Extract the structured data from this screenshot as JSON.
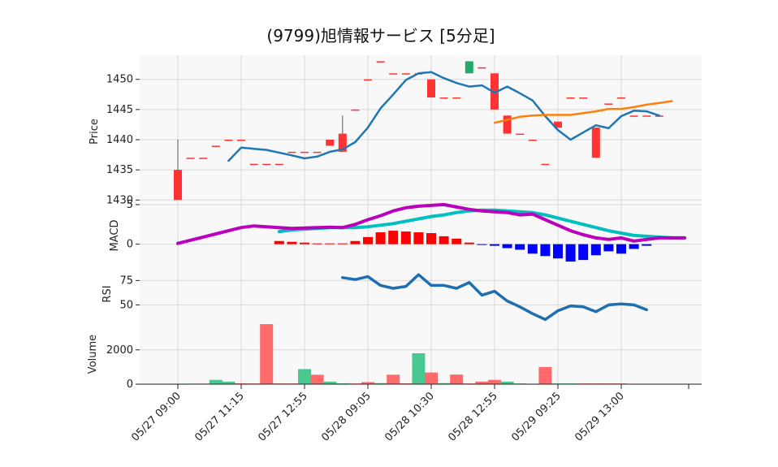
{
  "chart_data": {
    "type": "candlestick",
    "title": "(9799)旭情報サービス [5分足]",
    "x_tick_labels": [
      "05/27 09:00",
      "05/27 11:15",
      "05/27 12:55",
      "05/28 09:05",
      "05/28 10:30",
      "05/28 12:55",
      "05/29 09:25",
      "05/29 13:00"
    ],
    "x_tick_index": [
      0,
      5,
      10,
      15,
      20,
      25,
      30,
      35
    ],
    "n_bars": 39,
    "price": {
      "ylabel": "Price",
      "ylim": [
        1429.5,
        1454
      ],
      "yticks": [
        1430,
        1435,
        1440,
        1445,
        1450
      ],
      "up_color": "#26a86a",
      "down_color": "#ff3333",
      "ohlc": [
        [
          0,
          1435,
          1440,
          1430,
          1430
        ],
        [
          1,
          1437,
          1437,
          1437,
          1437
        ],
        [
          2,
          1437,
          1437,
          1437,
          1437
        ],
        [
          3,
          1439,
          1439,
          1439,
          1439
        ],
        [
          4,
          1440,
          1440,
          1440,
          1440
        ],
        [
          5,
          1440,
          1440,
          1440,
          1440
        ],
        [
          6,
          1436,
          1436,
          1436,
          1436
        ],
        [
          7,
          1436,
          1436,
          1436,
          1436
        ],
        [
          8,
          1436,
          1436,
          1436,
          1436
        ],
        [
          9,
          1438,
          1438,
          1438,
          1438
        ],
        [
          10,
          1438,
          1438,
          1438,
          1438
        ],
        [
          11,
          1438,
          1438,
          1438,
          1438
        ],
        [
          12,
          1440,
          1440,
          1439,
          1439
        ],
        [
          13,
          1441,
          1444,
          1438,
          1438
        ],
        [
          14,
          1445,
          1445,
          1445,
          1445
        ],
        [
          15,
          1450,
          1450,
          1450,
          1450
        ],
        [
          16,
          1453,
          1453,
          1453,
          1453
        ],
        [
          17,
          1451,
          1451,
          1451,
          1451
        ],
        [
          18,
          1451,
          1451,
          1451,
          1451
        ],
        [
          19,
          1451,
          1451,
          1451,
          1451
        ],
        [
          20,
          1450,
          1450,
          1447,
          1447
        ],
        [
          21,
          1447,
          1447,
          1447,
          1447
        ],
        [
          22,
          1447,
          1447,
          1447,
          1447
        ],
        [
          23,
          1451,
          1453,
          1451,
          1453
        ],
        [
          24,
          1452,
          1452,
          1452,
          1452
        ],
        [
          25,
          1451,
          1451,
          1445,
          1445
        ],
        [
          26,
          1444,
          1444,
          1441,
          1441
        ],
        [
          27,
          1441,
          1441,
          1441,
          1441
        ],
        [
          28,
          1440,
          1440,
          1440,
          1440
        ],
        [
          29,
          1436,
          1436,
          1436,
          1436
        ],
        [
          30,
          1443,
          1443,
          1442,
          1442
        ],
        [
          31,
          1447,
          1447,
          1447,
          1447
        ],
        [
          32,
          1447,
          1447,
          1447,
          1447
        ],
        [
          33,
          1442,
          1442,
          1437,
          1437
        ],
        [
          34,
          1446,
          1446,
          1446,
          1446
        ],
        [
          35,
          1447,
          1447,
          1447,
          1447
        ],
        [
          36,
          1444,
          1444,
          1444,
          1444
        ],
        [
          37,
          1444,
          1444,
          1444,
          1444
        ],
        [
          38,
          1444,
          1444,
          1444,
          1444
        ]
      ],
      "ma_short": [
        [
          4,
          1436.5
        ],
        [
          5,
          1438.7
        ],
        [
          7,
          1438.3
        ],
        [
          9,
          1437.4
        ],
        [
          10,
          1436.9
        ],
        [
          11,
          1437.2
        ],
        [
          12,
          1438.0
        ],
        [
          13,
          1438.4
        ],
        [
          14,
          1439.6
        ],
        [
          15,
          1442.0
        ],
        [
          16,
          1445.2
        ],
        [
          17,
          1447.5
        ],
        [
          18,
          1449.9
        ],
        [
          19,
          1451.0
        ],
        [
          20,
          1451.2
        ],
        [
          21,
          1450.2
        ],
        [
          22,
          1449.4
        ],
        [
          23,
          1448.8
        ],
        [
          24,
          1449.0
        ],
        [
          25,
          1447.8
        ],
        [
          26,
          1448.8
        ],
        [
          27,
          1447.7
        ],
        [
          28,
          1446.5
        ],
        [
          29,
          1443.9
        ],
        [
          30,
          1441.6
        ],
        [
          31,
          1440.0
        ],
        [
          32,
          1441.2
        ],
        [
          33,
          1442.4
        ],
        [
          34,
          1441.9
        ],
        [
          35,
          1443.9
        ],
        [
          36,
          1444.8
        ],
        [
          37,
          1444.7
        ],
        [
          38,
          1444.0
        ]
      ],
      "ma_long": [
        [
          25,
          1442.8
        ],
        [
          26,
          1443.3
        ],
        [
          27,
          1443.8
        ],
        [
          28,
          1444.0
        ],
        [
          29,
          1444.1
        ],
        [
          30,
          1444.1
        ],
        [
          31,
          1444.1
        ],
        [
          32,
          1444.4
        ],
        [
          33,
          1444.7
        ],
        [
          34,
          1445.1
        ],
        [
          35,
          1445.1
        ],
        [
          36,
          1445.4
        ],
        [
          37,
          1445.8
        ],
        [
          38,
          1446.1
        ],
        [
          39,
          1446.4
        ]
      ],
      "ma_short_color": "#1f77b4",
      "ma_long_color": "#ff7f0e"
    },
    "macd": {
      "ylabel": "MACD",
      "ylim": [
        -2.5,
        5.2
      ],
      "yticks": [
        0,
        5
      ],
      "macd_line": [
        [
          0,
          0.1
        ],
        [
          1,
          0.5
        ],
        [
          2,
          0.9
        ],
        [
          3,
          1.3
        ],
        [
          4,
          1.7
        ],
        [
          5,
          2.1
        ],
        [
          6,
          2.3
        ],
        [
          7,
          2.2
        ],
        [
          8,
          2.1
        ],
        [
          9,
          2.0
        ],
        [
          10,
          2.05
        ],
        [
          11,
          2.1
        ],
        [
          12,
          2.15
        ],
        [
          13,
          2.1
        ],
        [
          14,
          2.5
        ],
        [
          15,
          3.1
        ],
        [
          16,
          3.6
        ],
        [
          17,
          4.2
        ],
        [
          18,
          4.6
        ],
        [
          19,
          4.8
        ],
        [
          20,
          4.9
        ],
        [
          21,
          5.0
        ],
        [
          22,
          4.7
        ],
        [
          23,
          4.4
        ],
        [
          24,
          4.2
        ],
        [
          25,
          4.1
        ],
        [
          26,
          4.0
        ],
        [
          27,
          3.7
        ],
        [
          28,
          3.8
        ],
        [
          29,
          3.1
        ],
        [
          30,
          2.4
        ],
        [
          31,
          1.7
        ],
        [
          32,
          1.2
        ],
        [
          33,
          0.8
        ],
        [
          34,
          0.6
        ],
        [
          35,
          0.8
        ],
        [
          36,
          0.4
        ],
        [
          37,
          0.6
        ],
        [
          38,
          0.8
        ],
        [
          39,
          0.8
        ],
        [
          40,
          0.8
        ]
      ],
      "signal_line": [
        [
          8,
          1.6
        ],
        [
          9,
          1.8
        ],
        [
          10,
          1.9
        ],
        [
          11,
          2.0
        ],
        [
          12,
          2.1
        ],
        [
          13,
          2.1
        ],
        [
          14,
          2.1
        ],
        [
          15,
          2.2
        ],
        [
          16,
          2.4
        ],
        [
          17,
          2.6
        ],
        [
          18,
          2.9
        ],
        [
          19,
          3.2
        ],
        [
          20,
          3.5
        ],
        [
          21,
          3.7
        ],
        [
          22,
          4.0
        ],
        [
          23,
          4.2
        ],
        [
          24,
          4.3
        ],
        [
          25,
          4.3
        ],
        [
          26,
          4.2
        ],
        [
          27,
          4.1
        ],
        [
          28,
          4.0
        ],
        [
          29,
          3.7
        ],
        [
          30,
          3.3
        ],
        [
          31,
          2.9
        ],
        [
          32,
          2.5
        ],
        [
          33,
          2.1
        ],
        [
          34,
          1.7
        ],
        [
          35,
          1.4
        ],
        [
          36,
          1.1
        ],
        [
          37,
          1.0
        ],
        [
          38,
          0.9
        ],
        [
          39,
          0.8
        ],
        [
          40,
          0.8
        ]
      ],
      "histogram": [
        [
          8,
          0.4
        ],
        [
          9,
          0.3
        ],
        [
          10,
          0.2
        ],
        [
          11,
          0.1
        ],
        [
          12,
          0.1
        ],
        [
          13,
          0.1
        ],
        [
          14,
          0.4
        ],
        [
          15,
          0.9
        ],
        [
          16,
          1.5
        ],
        [
          17,
          1.7
        ],
        [
          18,
          1.6
        ],
        [
          19,
          1.5
        ],
        [
          20,
          1.4
        ],
        [
          21,
          1.0
        ],
        [
          22,
          0.7
        ],
        [
          23,
          0.2
        ],
        [
          24,
          -0.1
        ],
        [
          25,
          -0.2
        ],
        [
          26,
          -0.5
        ],
        [
          27,
          -0.7
        ],
        [
          28,
          -1.2
        ],
        [
          29,
          -1.5
        ],
        [
          30,
          -1.8
        ],
        [
          31,
          -2.2
        ],
        [
          32,
          -2.0
        ],
        [
          33,
          -1.4
        ],
        [
          34,
          -0.9
        ],
        [
          35,
          -1.2
        ],
        [
          36,
          -0.6
        ],
        [
          37,
          -0.2
        ]
      ],
      "macd_color": "#bb00bb",
      "signal_color": "#00bfbf",
      "hist_pos_color": "#ff0000",
      "hist_neg_color": "#0000ff"
    },
    "rsi": {
      "ylabel": "RSI",
      "ylim": [
        32,
        92
      ],
      "yticks": [
        50,
        75
      ],
      "values": [
        [
          13,
          78
        ],
        [
          14,
          76
        ],
        [
          15,
          79
        ],
        [
          16,
          70
        ],
        [
          17,
          67
        ],
        [
          18,
          69
        ],
        [
          19,
          81
        ],
        [
          20,
          70
        ],
        [
          21,
          70
        ],
        [
          22,
          67
        ],
        [
          23,
          73
        ],
        [
          24,
          60
        ],
        [
          25,
          64
        ],
        [
          26,
          54
        ],
        [
          27,
          48
        ],
        [
          28,
          41
        ],
        [
          29,
          35
        ],
        [
          30,
          44
        ],
        [
          31,
          49
        ],
        [
          32,
          48
        ],
        [
          33,
          43
        ],
        [
          34,
          50
        ],
        [
          35,
          51
        ],
        [
          36,
          50
        ],
        [
          37,
          45
        ]
      ],
      "color": "#1f6fb0"
    },
    "volume": {
      "ylabel": "Volume",
      "ylim": [
        0,
        3600
      ],
      "yticks": [
        0,
        2000
      ],
      "bars": [
        [
          0,
          20,
          "down"
        ],
        [
          1,
          30,
          "up"
        ],
        [
          2,
          30,
          "down"
        ],
        [
          3,
          250,
          "up"
        ],
        [
          4,
          150,
          "up"
        ],
        [
          5,
          50,
          "down"
        ],
        [
          6,
          40,
          "down"
        ],
        [
          7,
          3500,
          "down"
        ],
        [
          8,
          40,
          "down"
        ],
        [
          9,
          40,
          "down"
        ],
        [
          10,
          880,
          "up"
        ],
        [
          11,
          550,
          "down"
        ],
        [
          12,
          150,
          "up"
        ],
        [
          13,
          50,
          "up"
        ],
        [
          14,
          40,
          "down"
        ],
        [
          15,
          120,
          "down"
        ],
        [
          16,
          60,
          "up"
        ],
        [
          17,
          550,
          "down"
        ],
        [
          18,
          50,
          "down"
        ],
        [
          19,
          1800,
          "up"
        ],
        [
          20,
          680,
          "down"
        ],
        [
          21,
          60,
          "up"
        ],
        [
          22,
          560,
          "down"
        ],
        [
          23,
          40,
          "down"
        ],
        [
          24,
          150,
          "down"
        ],
        [
          25,
          250,
          "down"
        ],
        [
          26,
          150,
          "up"
        ],
        [
          27,
          40,
          "up"
        ],
        [
          28,
          20,
          "down"
        ],
        [
          29,
          1000,
          "down"
        ],
        [
          30,
          40,
          "up"
        ],
        [
          31,
          40,
          "up"
        ],
        [
          32,
          40,
          "down"
        ],
        [
          33,
          40,
          "down"
        ],
        [
          34,
          40,
          "down"
        ],
        [
          35,
          40,
          "down"
        ]
      ],
      "up_color": "#4ac891",
      "down_color": "#ff6b6b"
    }
  }
}
